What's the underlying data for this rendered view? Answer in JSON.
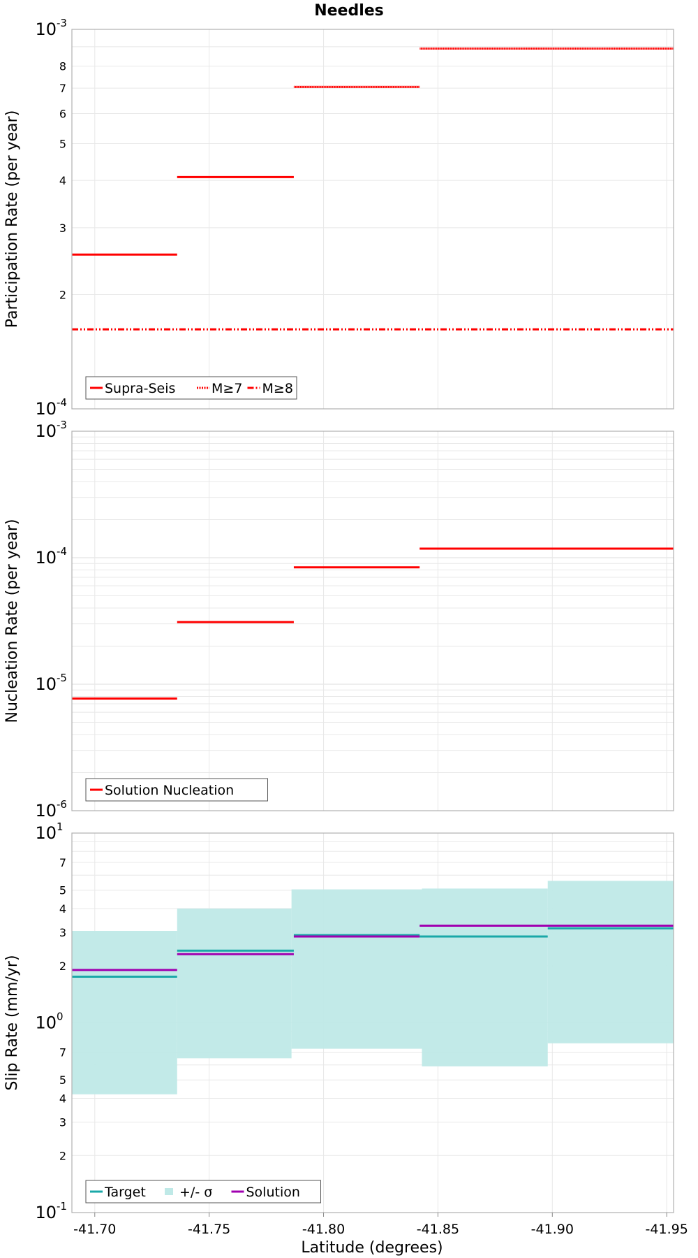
{
  "title": "Needles",
  "colors": {
    "supra_seis": "#ff0000",
    "target": "#1aa8a8",
    "sigma_band": "#bfe9e7",
    "solution": "#a000b0",
    "grid": "#e8e8e8",
    "frame": "#b0b0b0"
  },
  "x_axis": {
    "label": "Latitude (degrees)",
    "range": [
      -41.69,
      -41.953
    ],
    "ticks": [
      -41.7,
      -41.75,
      -41.8,
      -41.85,
      -41.9,
      -41.95
    ],
    "tick_labels": [
      "-41.70",
      "-41.75",
      "-41.80",
      "-41.85",
      "-41.90",
      "-41.95"
    ]
  },
  "chart_data": [
    {
      "type": "line",
      "name": "participation",
      "ylabel": "Participation Rate (per year)",
      "yscale": "log",
      "ylim": [
        0.0001,
        0.001
      ],
      "major_tick_labels": [
        {
          "value": 0.001,
          "base": "10",
          "exp": "-3"
        },
        {
          "value": 0.0001,
          "base": "10",
          "exp": "-4"
        }
      ],
      "minor_tick_labels": [
        {
          "value": 0.0002,
          "label": "2"
        },
        {
          "value": 0.0003,
          "label": "3"
        },
        {
          "value": 0.0004,
          "label": "4"
        },
        {
          "value": 0.0005,
          "label": "5"
        },
        {
          "value": 0.0006,
          "label": "6"
        },
        {
          "value": 0.0007,
          "label": "7"
        },
        {
          "value": 0.0008,
          "label": "8"
        }
      ],
      "series": [
        {
          "name": "Supra-Seis",
          "style": "solid",
          "segments": [
            {
              "x0": -41.69,
              "x1": -41.736,
              "y": 0.000255
            },
            {
              "x0": -41.736,
              "x1": -41.787,
              "y": 0.000408
            },
            {
              "x0": -41.787,
              "x1": -41.842,
              "y": 0.000705
            },
            {
              "x0": -41.842,
              "x1": -41.953,
              "y": 0.00089
            }
          ]
        },
        {
          "name": "M≥7",
          "style": "dotted",
          "segments": [
            {
              "x0": -41.787,
              "x1": -41.842,
              "y": 0.000705
            },
            {
              "x0": -41.842,
              "x1": -41.953,
              "y": 0.00089
            }
          ]
        },
        {
          "name": "M≥8",
          "style": "dashdot",
          "segments": [
            {
              "x0": -41.69,
              "x1": -41.953,
              "y": 0.000162
            }
          ]
        }
      ],
      "legend": [
        "Supra-Seis",
        "M≥7",
        "M≥8"
      ],
      "legend_position": "bottom-left"
    },
    {
      "type": "line",
      "name": "nucleation",
      "ylabel": "Nucleation Rate (per year)",
      "yscale": "log",
      "ylim": [
        1e-06,
        0.001
      ],
      "major_tick_labels": [
        {
          "value": 0.001,
          "base": "10",
          "exp": "-3"
        },
        {
          "value": 0.0001,
          "base": "10",
          "exp": "-4"
        },
        {
          "value": 1e-05,
          "base": "10",
          "exp": "-5"
        },
        {
          "value": 1e-06,
          "base": "10",
          "exp": "-6"
        }
      ],
      "minor_tick_labels": [],
      "series": [
        {
          "name": "Solution Nucleation",
          "style": "solid",
          "segments": [
            {
              "x0": -41.69,
              "x1": -41.736,
              "y": 7.7e-06
            },
            {
              "x0": -41.736,
              "x1": -41.787,
              "y": 3.1e-05
            },
            {
              "x0": -41.787,
              "x1": -41.842,
              "y": 8.4e-05
            },
            {
              "x0": -41.842,
              "x1": -41.953,
              "y": 0.000118
            }
          ]
        }
      ],
      "legend": [
        "Solution Nucleation"
      ],
      "legend_position": "bottom-left"
    },
    {
      "type": "line",
      "name": "slip",
      "ylabel": "Slip Rate (mm/yr)",
      "yscale": "log",
      "ylim": [
        0.1,
        10
      ],
      "major_tick_labels": [
        {
          "value": 10,
          "base": "10",
          "exp": "1"
        },
        {
          "value": 1,
          "base": "10",
          "exp": "0"
        },
        {
          "value": 0.1,
          "base": "10",
          "exp": "-1"
        }
      ],
      "minor_tick_labels": [
        {
          "value": 7,
          "label": "7"
        },
        {
          "value": 5,
          "label": "5"
        },
        {
          "value": 4,
          "label": "4"
        },
        {
          "value": 3,
          "label": "3"
        },
        {
          "value": 2,
          "label": "2"
        },
        {
          "value": 0.7,
          "label": "7"
        },
        {
          "value": 0.5,
          "label": "5"
        },
        {
          "value": 0.4,
          "label": "4"
        },
        {
          "value": 0.3,
          "label": "3"
        },
        {
          "value": 0.2,
          "label": "2"
        }
      ],
      "sigma_band": [
        {
          "x0": -41.69,
          "x1": -41.736,
          "low": 0.42,
          "high": 3.05
        },
        {
          "x0": -41.736,
          "x1": -41.786,
          "low": 0.65,
          "high": 4.0
        },
        {
          "x0": -41.786,
          "x1": -41.843,
          "low": 0.73,
          "high": 5.05
        },
        {
          "x0": -41.843,
          "x1": -41.898,
          "low": 0.59,
          "high": 5.1
        },
        {
          "x0": -41.898,
          "x1": -41.953,
          "low": 0.78,
          "high": 5.6
        }
      ],
      "series": [
        {
          "name": "Target",
          "style": "solid",
          "segments": [
            {
              "x0": -41.69,
              "x1": -41.736,
              "y": 1.75
            },
            {
              "x0": -41.736,
              "x1": -41.787,
              "y": 2.4
            },
            {
              "x0": -41.787,
              "x1": -41.842,
              "y": 2.9
            },
            {
              "x0": -41.842,
              "x1": -41.898,
              "y": 2.85
            },
            {
              "x0": -41.898,
              "x1": -41.953,
              "y": 3.15
            }
          ]
        },
        {
          "name": "Solution",
          "style": "solid",
          "segments": [
            {
              "x0": -41.69,
              "x1": -41.736,
              "y": 1.9
            },
            {
              "x0": -41.736,
              "x1": -41.787,
              "y": 2.3
            },
            {
              "x0": -41.787,
              "x1": -41.842,
              "y": 2.85
            },
            {
              "x0": -41.842,
              "x1": -41.953,
              "y": 3.25
            }
          ]
        }
      ],
      "legend": [
        "Target",
        "+/- σ",
        "Solution"
      ],
      "legend_position": "bottom-left"
    }
  ]
}
